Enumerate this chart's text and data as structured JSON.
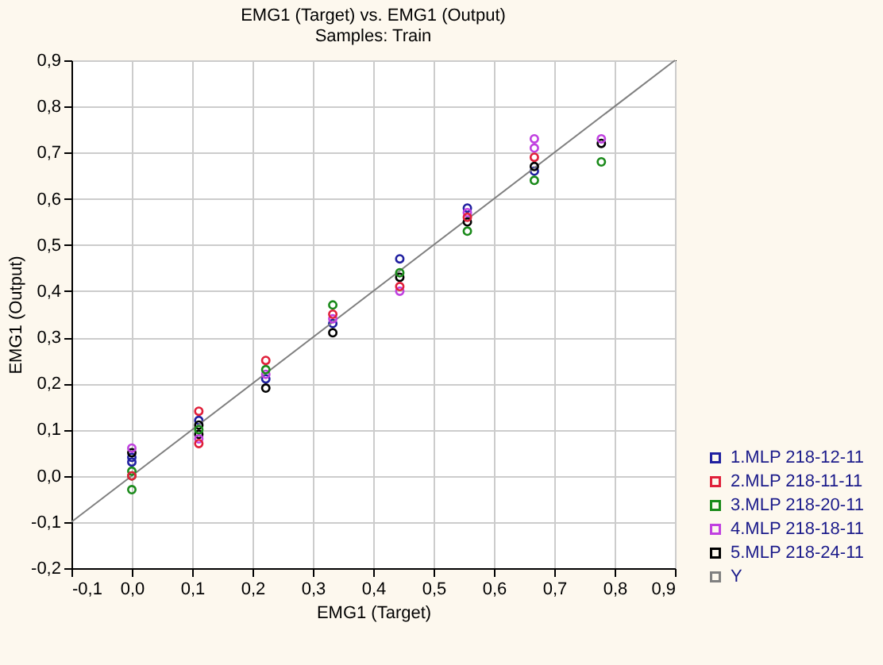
{
  "chart_data": {
    "type": "scatter",
    "title": "EMG1 (Target) vs. EMG1 (Output)",
    "subtitle": "Samples: Train",
    "xlabel": "EMG1 (Target)",
    "ylabel": "EMG1 (Output)",
    "xlim": [
      -0.1,
      0.9
    ],
    "ylim": [
      -0.2,
      0.9
    ],
    "xticks": [
      {
        "value": -0.1,
        "label": "-0,1"
      },
      {
        "value": 0,
        "label": "0,0"
      },
      {
        "value": 0.1,
        "label": "0,1"
      },
      {
        "value": 0.2,
        "label": "0,2"
      },
      {
        "value": 0.3,
        "label": "0,3"
      },
      {
        "value": 0.4,
        "label": "0,4"
      },
      {
        "value": 0.5,
        "label": "0,5"
      },
      {
        "value": 0.6,
        "label": "0,6"
      },
      {
        "value": 0.7,
        "label": "0,7"
      },
      {
        "value": 0.8,
        "label": "0,8"
      },
      {
        "value": 0.9,
        "label": "0,9"
      }
    ],
    "yticks": [
      {
        "value": -0.2,
        "label": "-0,2"
      },
      {
        "value": -0.1,
        "label": "-0,1"
      },
      {
        "value": 0,
        "label": "0,0"
      },
      {
        "value": 0.1,
        "label": "0,1"
      },
      {
        "value": 0.2,
        "label": "0,2"
      },
      {
        "value": 0.3,
        "label": "0,3"
      },
      {
        "value": 0.4,
        "label": "0,4"
      },
      {
        "value": 0.5,
        "label": "0,5"
      },
      {
        "value": 0.6,
        "label": "0,6"
      },
      {
        "value": 0.7,
        "label": "0,7"
      },
      {
        "value": 0.8,
        "label": "0,8"
      },
      {
        "value": 0.9,
        "label": "0,9"
      }
    ],
    "grid": true,
    "legend": "bottom right",
    "marker": "circle",
    "series": [
      {
        "name": "1.MLP 218-12-11",
        "color": "#2020a0",
        "x": [
          0,
          0,
          0.111,
          0.222,
          0.333,
          0.444,
          0.556,
          0.667
        ],
        "values": [
          0.04,
          0.03,
          0.12,
          0.21,
          0.33,
          0.47,
          0.58,
          0.66
        ]
      },
      {
        "name": "2.MLP 218-11-11",
        "color": "#e0203a",
        "x": [
          0,
          0.111,
          0.111,
          0.222,
          0.333,
          0.444,
          0.556,
          0.667
        ],
        "values": [
          0.0,
          0.14,
          0.07,
          0.25,
          0.35,
          0.41,
          0.56,
          0.69
        ]
      },
      {
        "name": "3.MLP 218-20-11",
        "color": "#1a8a1a",
        "x": [
          0,
          0,
          0,
          0.111,
          0.222,
          0.333,
          0.444,
          0.556,
          0.667,
          0.778
        ],
        "values": [
          0.01,
          0.0,
          -0.03,
          0.1,
          0.23,
          0.37,
          0.44,
          0.53,
          0.64,
          0.68
        ]
      },
      {
        "name": "4.MLP 218-18-11",
        "color": "#c040e0",
        "x": [
          0,
          0.111,
          0.222,
          0.333,
          0.444,
          0.556,
          0.667,
          0.667,
          0.778
        ],
        "values": [
          0.06,
          0.08,
          0.22,
          0.34,
          0.4,
          0.57,
          0.73,
          0.71,
          0.73
        ]
      },
      {
        "name": "5.MLP 218-24-11",
        "color": "#000000",
        "x": [
          0,
          0.111,
          0.111,
          0.222,
          0.333,
          0.444,
          0.556,
          0.667,
          0.778
        ],
        "values": [
          0.05,
          0.11,
          0.09,
          0.19,
          0.31,
          0.43,
          0.55,
          0.67,
          0.72
        ]
      },
      {
        "name": "Y",
        "type": "line",
        "marker": "none",
        "color": "#808080",
        "x": [
          -0.1,
          0.9
        ],
        "values": [
          -0.1,
          0.9
        ]
      }
    ]
  }
}
